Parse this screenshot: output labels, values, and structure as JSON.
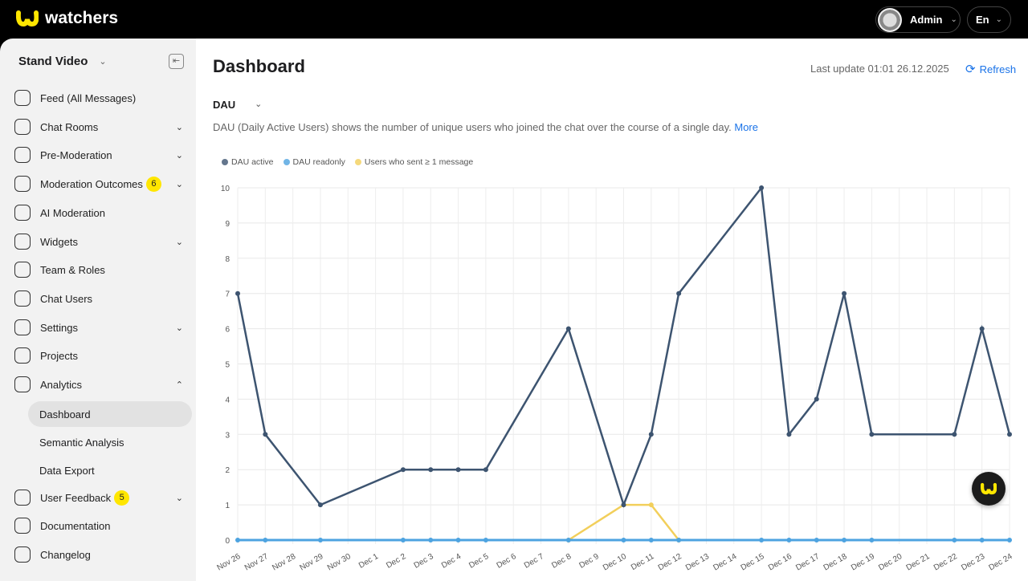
{
  "app": {
    "name": "watchers",
    "user": "Admin",
    "language": "En"
  },
  "sidebar": {
    "workspace": "Stand Video",
    "items": [
      {
        "label": "Feed (All Messages)"
      },
      {
        "label": "Chat Rooms",
        "expandable": true
      },
      {
        "label": "Pre-Moderation",
        "expandable": true
      },
      {
        "label": "Moderation Outcomes",
        "badge": "6",
        "expandable": true
      },
      {
        "label": "AI Moderation"
      },
      {
        "label": "Widgets",
        "expandable": true
      },
      {
        "label": "Team & Roles"
      },
      {
        "label": "Chat Users"
      },
      {
        "label": "Settings",
        "expandable": true
      },
      {
        "label": "Projects"
      },
      {
        "label": "Analytics",
        "expanded": true
      },
      {
        "label": "User Feedback",
        "badge": "5",
        "expandable": true
      },
      {
        "label": "Documentation"
      },
      {
        "label": "Changelog"
      }
    ],
    "analytics_sub": [
      {
        "label": "Dashboard",
        "active": true
      },
      {
        "label": "Semantic Analysis"
      },
      {
        "label": "Data Export"
      }
    ]
  },
  "main": {
    "title": "Dashboard",
    "last_update": "Last update 01:01 26.12.2025",
    "refresh": "Refresh",
    "metric": "DAU",
    "description": "DAU (Daily Active Users) shows the number of unique users who joined the chat over the course of a single day.",
    "more": "More"
  },
  "chart_data": {
    "type": "line",
    "categories": [
      "Nov 26",
      "Nov 27",
      "Nov 28",
      "Nov 29",
      "Nov 30",
      "Dec 1",
      "Dec 2",
      "Dec 3",
      "Dec 4",
      "Dec 5",
      "Dec 6",
      "Dec 7",
      "Dec 8",
      "Dec 9",
      "Dec 10",
      "Dec 11",
      "Dec 12",
      "Dec 13",
      "Dec 14",
      "Dec 15",
      "Dec 16",
      "Dec 17",
      "Dec 18",
      "Dec 19",
      "Dec 20",
      "Dec 21",
      "Dec 22",
      "Dec 23",
      "Dec 24"
    ],
    "ylim": [
      0,
      10
    ],
    "yticks": [
      0,
      1,
      2,
      3,
      4,
      5,
      6,
      7,
      8,
      9,
      10
    ],
    "legend_position": "top-left",
    "series": [
      {
        "name": "DAU active",
        "color": "#3d5470",
        "values": [
          7,
          3,
          null,
          1,
          null,
          null,
          2,
          2,
          2,
          2,
          null,
          null,
          6,
          null,
          1,
          3,
          7,
          null,
          null,
          10,
          3,
          4,
          7,
          3,
          null,
          null,
          3,
          6,
          3
        ]
      },
      {
        "name": "DAU readonly",
        "color": "#4da3e0",
        "values": [
          0,
          0,
          null,
          0,
          null,
          null,
          0,
          0,
          0,
          0,
          null,
          null,
          0,
          null,
          0,
          0,
          0,
          null,
          null,
          0,
          0,
          0,
          0,
          0,
          null,
          null,
          0,
          0,
          0
        ]
      },
      {
        "name": "Users who sent ≥ 1 message",
        "color": "#f2cf5b",
        "values": [
          null,
          null,
          null,
          null,
          null,
          null,
          null,
          null,
          null,
          null,
          null,
          null,
          0,
          null,
          1,
          1,
          0,
          null,
          null,
          null,
          null,
          null,
          null,
          null,
          null,
          null,
          null,
          null,
          null
        ]
      }
    ]
  }
}
